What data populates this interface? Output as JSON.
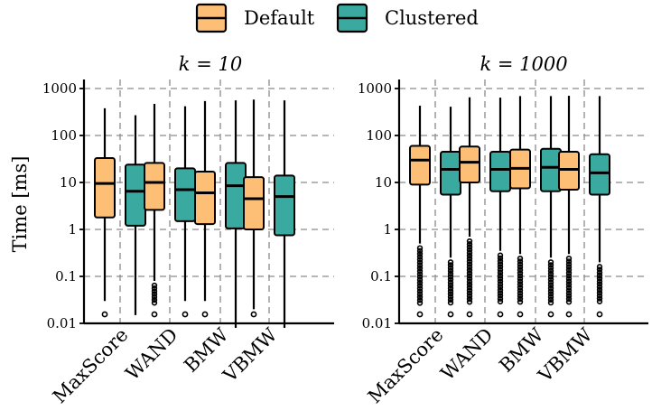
{
  "legend": {
    "items": [
      {
        "label": "Default",
        "color": "#FDBF75"
      },
      {
        "label": "Clustered",
        "color": "#3AA99F"
      }
    ]
  },
  "ylabel": "Time [ms]",
  "chart_data": {
    "type": "box",
    "ylabel": "Time [ms]",
    "yscale": "log",
    "ylim": [
      0.001,
      1500
    ],
    "yticks": [
      {
        "value": 1000,
        "label": "1000"
      },
      {
        "value": 100,
        "label": "100"
      },
      {
        "value": 10,
        "label": "10"
      },
      {
        "value": 1,
        "label": "1"
      },
      {
        "value": 0.1,
        "label": "0.1"
      },
      {
        "value": 0.01,
        "label": "0.01"
      }
    ],
    "categories": [
      "MaxScore",
      "WAND",
      "BMW",
      "VBMW"
    ],
    "series_names": [
      "Default",
      "Clustered"
    ],
    "series_colors": [
      "#FDBF75",
      "#3AA99F"
    ],
    "grid": true,
    "legend_position": "top",
    "panels": [
      {
        "title": "k = 10",
        "boxes": [
          {
            "category": "MaxScore",
            "series": "Default",
            "whislo": 0.03,
            "q1": 1.8,
            "med": 9.5,
            "q3": 33,
            "whishi": 380
          },
          {
            "category": "MaxScore",
            "series": "Clustered",
            "whislo": 0.015,
            "q1": 1.2,
            "med": 6.5,
            "q3": 24,
            "whishi": 270
          },
          {
            "category": "WAND",
            "series": "Default",
            "whislo": 0.08,
            "q1": 2.6,
            "med": 10,
            "q3": 26,
            "whishi": 470
          },
          {
            "category": "WAND",
            "series": "Clustered",
            "whislo": 0.03,
            "q1": 1.5,
            "med": 7,
            "q3": 20,
            "whishi": 420
          },
          {
            "category": "BMW",
            "series": "Default",
            "whislo": 0.03,
            "q1": 1.3,
            "med": 6,
            "q3": 17,
            "whishi": 540
          },
          {
            "category": "BMW",
            "series": "Clustered",
            "whislo": 0.008,
            "q1": 1.05,
            "med": 8.5,
            "q3": 26,
            "whishi": 560
          },
          {
            "category": "VBMW",
            "series": "Default",
            "whislo": 0.02,
            "q1": 1,
            "med": 4.5,
            "q3": 13,
            "whishi": 580
          },
          {
            "category": "VBMW",
            "series": "Clustered",
            "whislo": 0.008,
            "q1": 0.75,
            "med": 5,
            "q3": 14,
            "whishi": 560
          }
        ]
      },
      {
        "title": "k = 1000",
        "boxes": [
          {
            "category": "MaxScore",
            "series": "Default",
            "whislo": 0.5,
            "q1": 9,
            "med": 30,
            "q3": 60,
            "whishi": 430
          },
          {
            "category": "MaxScore",
            "series": "Clustered",
            "whislo": 0.25,
            "q1": 5.5,
            "med": 19,
            "q3": 45,
            "whishi": 410
          },
          {
            "category": "WAND",
            "series": "Default",
            "whislo": 0.7,
            "q1": 10,
            "med": 27,
            "q3": 58,
            "whishi": 650
          },
          {
            "category": "WAND",
            "series": "Clustered",
            "whislo": 0.35,
            "q1": 6.5,
            "med": 19,
            "q3": 45,
            "whishi": 640
          },
          {
            "category": "BMW",
            "series": "Default",
            "whislo": 0.3,
            "q1": 7.5,
            "med": 20,
            "q3": 50,
            "whishi": 690
          },
          {
            "category": "BMW",
            "series": "Clustered",
            "whislo": 0.25,
            "q1": 6.5,
            "med": 21,
            "q3": 52,
            "whishi": 690
          },
          {
            "category": "VBMW",
            "series": "Default",
            "whislo": 0.3,
            "q1": 7,
            "med": 19,
            "q3": 45,
            "whishi": 700
          },
          {
            "category": "VBMW",
            "series": "Clustered",
            "whislo": 0.2,
            "q1": 5.5,
            "med": 16,
            "q3": 40,
            "whishi": 690
          }
        ]
      }
    ]
  }
}
